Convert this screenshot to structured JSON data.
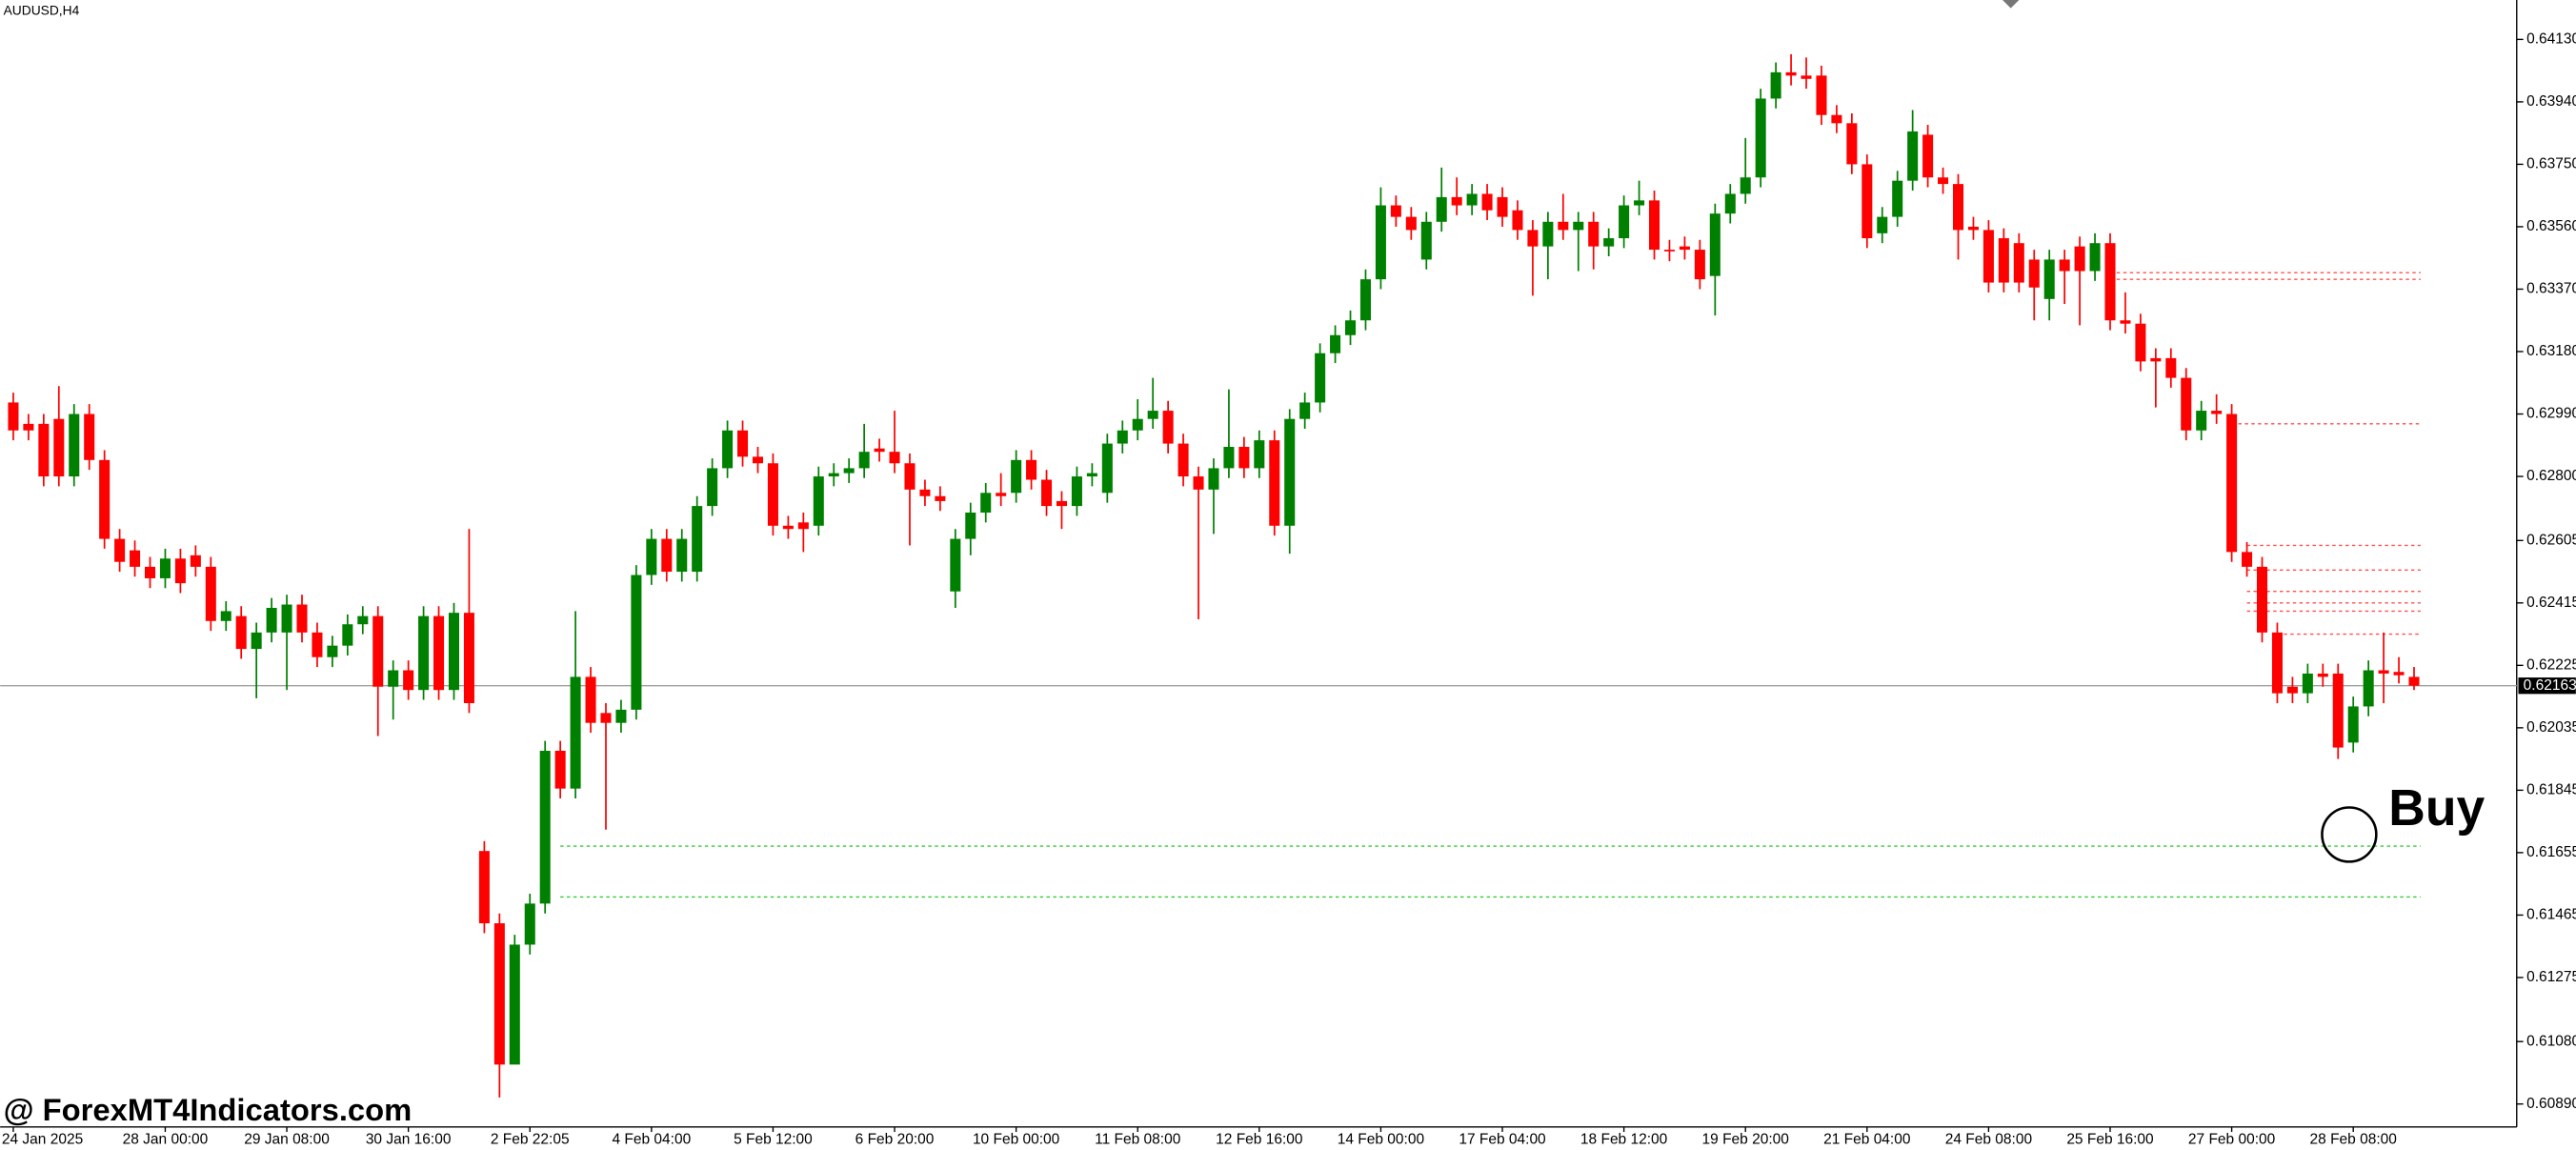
{
  "chart_data": {
    "type": "candlestick",
    "symbol": "AUDUSD,H4",
    "categories": [
      "24 Jan 2025",
      null,
      null,
      null,
      null,
      null,
      null,
      null,
      null,
      null,
      "28 Jan 00:00",
      null,
      null,
      null,
      null,
      null,
      null,
      null,
      "29 Jan 08:00",
      null,
      null,
      null,
      null,
      null,
      null,
      null,
      "30 Jan 16:00",
      null,
      null,
      null,
      null,
      null,
      null,
      null,
      "2 Feb 22:05",
      null,
      null,
      null,
      null,
      null,
      null,
      null,
      "4 Feb 04:00",
      null,
      null,
      null,
      null,
      null,
      null,
      null,
      "5 Feb 12:00",
      null,
      null,
      null,
      null,
      null,
      null,
      null,
      "6 Feb 20:00",
      null,
      null,
      null,
      null,
      null,
      null,
      null,
      "10 Feb 00:00",
      null,
      null,
      null,
      null,
      null,
      null,
      null,
      "11 Feb 08:00",
      null,
      null,
      null,
      null,
      null,
      null,
      null,
      "12 Feb 16:00",
      null,
      null,
      null,
      null,
      null,
      null,
      null,
      "14 Feb 00:00",
      null,
      null,
      null,
      null,
      null,
      null,
      null,
      "17 Feb 04:00",
      null,
      null,
      null,
      null,
      null,
      null,
      null,
      "18 Feb 12:00",
      null,
      null,
      null,
      null,
      null,
      null,
      null,
      "19 Feb 20:00",
      null,
      null,
      null,
      null,
      null,
      null,
      null,
      "21 Feb 04:00",
      null,
      null,
      null,
      null,
      null,
      null,
      null,
      "24 Feb 08:00",
      null,
      null,
      null,
      null,
      null,
      null,
      null,
      "25 Feb 16:00",
      null,
      null,
      null,
      null,
      null,
      null,
      null,
      "27 Feb 00:00",
      null,
      null,
      null,
      null,
      null,
      null,
      null,
      "28 Feb 08:00",
      null,
      null,
      null,
      null
    ],
    "open": [
      0.63025,
      0.6296,
      0.6296,
      0.62975,
      0.628,
      0.6299,
      0.6285,
      0.6261,
      0.62575,
      0.62525,
      0.6249,
      0.6255,
      0.6256,
      0.62525,
      0.6236,
      0.62375,
      0.62275,
      0.62325,
      0.62325,
      0.6241,
      0.62325,
      0.6225,
      0.62285,
      0.6235,
      0.62375,
      0.6216,
      0.6221,
      0.6215,
      0.62375,
      0.6215,
      0.62385,
      0.6166,
      0.6144,
      0.6101,
      0.61375,
      0.615,
      0.61965,
      0.6185,
      0.6219,
      0.6208,
      0.6205,
      0.6209,
      0.625,
      0.6261,
      0.6251,
      0.6251,
      0.6271,
      0.62825,
      0.6294,
      0.6286,
      0.6284,
      0.6265,
      0.6266,
      0.6265,
      0.628,
      0.6281,
      0.62825,
      0.62885,
      0.62875,
      0.6284,
      0.6276,
      0.6274,
      0.6245,
      0.6261,
      0.6269,
      0.6275,
      0.6275,
      0.6285,
      0.6279,
      0.62725,
      0.6271,
      0.628,
      0.6275,
      0.629,
      0.6294,
      0.62975,
      0.63,
      0.629,
      0.628,
      0.6276,
      0.62825,
      0.6289,
      0.62825,
      0.6291,
      0.6265,
      0.62975,
      0.63025,
      0.63175,
      0.6323,
      0.63275,
      0.634,
      0.63625,
      0.6359,
      0.6346,
      0.63575,
      0.6365,
      0.63625,
      0.6366,
      0.6365,
      0.6361,
      0.6355,
      0.635,
      0.63575,
      0.6355,
      0.63575,
      0.635,
      0.63525,
      0.63625,
      0.6364,
      0.6349,
      0.635,
      0.6349,
      0.6341,
      0.636,
      0.6366,
      0.6371,
      0.6395,
      0.6403,
      0.6402,
      0.6402,
      0.639,
      0.63875,
      0.6375,
      0.6354,
      0.6359,
      0.637,
      0.6384,
      0.6371,
      0.6369,
      0.6356,
      0.6355,
      0.63525,
      0.6351,
      0.6346,
      0.6334,
      0.6346,
      0.635,
      0.63425,
      0.6351,
      0.63275,
      0.63265,
      0.6316,
      0.6316,
      0.631,
      0.6294,
      0.63,
      0.6299,
      0.6257,
      0.62525,
      0.62325,
      0.6216,
      0.6214,
      0.622,
      0.622,
      0.6199,
      0.621,
      0.6221,
      0.62205,
      0.6219
    ],
    "high": [
      0.63055,
      0.6299,
      0.6299,
      0.63075,
      0.6302,
      0.6302,
      0.6288,
      0.6264,
      0.62605,
      0.62555,
      0.6258,
      0.6258,
      0.6259,
      0.62555,
      0.6242,
      0.62405,
      0.62355,
      0.6243,
      0.6244,
      0.6244,
      0.62355,
      0.62315,
      0.6238,
      0.62405,
      0.62405,
      0.6224,
      0.6224,
      0.62405,
      0.62405,
      0.62415,
      0.6264,
      0.6169,
      0.6147,
      0.61405,
      0.6153,
      0.61995,
      0.61995,
      0.6239,
      0.6222,
      0.6211,
      0.6212,
      0.6253,
      0.6264,
      0.6264,
      0.6264,
      0.6274,
      0.62855,
      0.6297,
      0.6297,
      0.6289,
      0.6287,
      0.6268,
      0.6269,
      0.6283,
      0.6284,
      0.62855,
      0.6296,
      0.62915,
      0.63,
      0.6287,
      0.6279,
      0.6277,
      0.6264,
      0.6272,
      0.6278,
      0.6281,
      0.6288,
      0.6288,
      0.6282,
      0.62755,
      0.6283,
      0.6284,
      0.6293,
      0.6297,
      0.63035,
      0.631,
      0.6303,
      0.6293,
      0.6283,
      0.62855,
      0.63065,
      0.6292,
      0.6294,
      0.6294,
      0.63005,
      0.63055,
      0.63205,
      0.6326,
      0.63305,
      0.6343,
      0.6368,
      0.63655,
      0.6362,
      0.63605,
      0.6374,
      0.6371,
      0.6369,
      0.6369,
      0.6368,
      0.6364,
      0.6358,
      0.63605,
      0.6366,
      0.63605,
      0.63605,
      0.63555,
      0.63655,
      0.637,
      0.6367,
      0.6352,
      0.6353,
      0.6352,
      0.6363,
      0.6369,
      0.6383,
      0.6398,
      0.6406,
      0.64085,
      0.64075,
      0.6405,
      0.6393,
      0.63905,
      0.6378,
      0.6362,
      0.6373,
      0.63915,
      0.6387,
      0.6374,
      0.6372,
      0.6359,
      0.6358,
      0.63555,
      0.6354,
      0.6349,
      0.6349,
      0.6349,
      0.6353,
      0.6354,
      0.6354,
      0.6336,
      0.63295,
      0.6319,
      0.6319,
      0.6313,
      0.6303,
      0.6305,
      0.6302,
      0.626,
      0.62555,
      0.62355,
      0.6219,
      0.6223,
      0.6223,
      0.6223,
      0.6213,
      0.6224,
      0.62325,
      0.6225,
      0.6222
    ],
    "low": [
      0.6291,
      0.6291,
      0.6277,
      0.6277,
      0.6277,
      0.6282,
      0.6258,
      0.6251,
      0.62495,
      0.6246,
      0.6246,
      0.62445,
      0.62495,
      0.6233,
      0.6233,
      0.62245,
      0.62125,
      0.62295,
      0.6215,
      0.62295,
      0.6222,
      0.6222,
      0.62255,
      0.6232,
      0.6201,
      0.6206,
      0.6212,
      0.6212,
      0.6212,
      0.6212,
      0.6208,
      0.6141,
      0.6091,
      0.6102,
      0.61345,
      0.6147,
      0.6182,
      0.6182,
      0.6202,
      0.61725,
      0.6202,
      0.6206,
      0.6247,
      0.6248,
      0.6248,
      0.6248,
      0.6268,
      0.62795,
      0.6283,
      0.6281,
      0.6262,
      0.6261,
      0.6257,
      0.6262,
      0.6277,
      0.6278,
      0.62795,
      0.62845,
      0.6281,
      0.6259,
      0.6271,
      0.62695,
      0.624,
      0.6256,
      0.6266,
      0.6271,
      0.6272,
      0.6276,
      0.6268,
      0.6264,
      0.6268,
      0.6277,
      0.6272,
      0.6287,
      0.6291,
      0.62945,
      0.6287,
      0.6277,
      0.62365,
      0.62625,
      0.62795,
      0.62795,
      0.62795,
      0.6262,
      0.62565,
      0.62945,
      0.62995,
      0.63145,
      0.632,
      0.63245,
      0.6337,
      0.6356,
      0.6352,
      0.6343,
      0.63545,
      0.63595,
      0.63595,
      0.6358,
      0.6356,
      0.6352,
      0.6335,
      0.634,
      0.6352,
      0.63425,
      0.6343,
      0.6347,
      0.63495,
      0.63595,
      0.6346,
      0.63455,
      0.6346,
      0.6337,
      0.6329,
      0.6357,
      0.6363,
      0.6368,
      0.6392,
      0.6399,
      0.6398,
      0.6387,
      0.63845,
      0.6372,
      0.63495,
      0.6351,
      0.6356,
      0.6367,
      0.6368,
      0.6366,
      0.6346,
      0.6352,
      0.6336,
      0.6336,
      0.6336,
      0.63275,
      0.63275,
      0.63325,
      0.6326,
      0.63395,
      0.63245,
      0.63235,
      0.6312,
      0.6301,
      0.6307,
      0.6291,
      0.6291,
      0.6296,
      0.6254,
      0.62495,
      0.62295,
      0.6211,
      0.6211,
      0.6211,
      0.6216,
      0.6194,
      0.6196,
      0.6207,
      0.6211,
      0.6217,
      0.6215
    ],
    "close": [
      0.6294,
      0.6294,
      0.628,
      0.628,
      0.6299,
      0.6285,
      0.6261,
      0.6254,
      0.62525,
      0.6249,
      0.6255,
      0.62475,
      0.62525,
      0.6236,
      0.6239,
      0.62275,
      0.62325,
      0.624,
      0.6241,
      0.62325,
      0.6225,
      0.62285,
      0.6235,
      0.62375,
      0.6216,
      0.6221,
      0.6215,
      0.62375,
      0.6215,
      0.62385,
      0.6211,
      0.6144,
      0.6101,
      0.61375,
      0.615,
      0.61965,
      0.6185,
      0.6219,
      0.6205,
      0.6205,
      0.6209,
      0.625,
      0.6261,
      0.6251,
      0.6261,
      0.6271,
      0.62825,
      0.6294,
      0.6286,
      0.6284,
      0.6265,
      0.6264,
      0.6264,
      0.628,
      0.6281,
      0.62825,
      0.62875,
      0.62875,
      0.6284,
      0.6276,
      0.6274,
      0.62725,
      0.6261,
      0.6269,
      0.6275,
      0.6274,
      0.6285,
      0.6279,
      0.6271,
      0.6271,
      0.628,
      0.6281,
      0.629,
      0.6294,
      0.62975,
      0.63,
      0.629,
      0.628,
      0.6276,
      0.62825,
      0.6289,
      0.62825,
      0.6291,
      0.6265,
      0.62975,
      0.63025,
      0.63175,
      0.6323,
      0.63275,
      0.634,
      0.63625,
      0.6359,
      0.6355,
      0.63575,
      0.6365,
      0.63625,
      0.6366,
      0.6361,
      0.6359,
      0.6355,
      0.635,
      0.63575,
      0.6355,
      0.63575,
      0.635,
      0.63525,
      0.63625,
      0.6364,
      0.6349,
      0.63485,
      0.6349,
      0.634,
      0.636,
      0.6366,
      0.6371,
      0.6395,
      0.6403,
      0.6402,
      0.6401,
      0.639,
      0.63875,
      0.6375,
      0.63525,
      0.6359,
      0.637,
      0.6385,
      0.6371,
      0.6369,
      0.6355,
      0.6355,
      0.6339,
      0.6339,
      0.6339,
      0.63375,
      0.6346,
      0.63425,
      0.63425,
      0.6351,
      0.63275,
      0.63265,
      0.6315,
      0.6315,
      0.631,
      0.6294,
      0.63,
      0.6299,
      0.6257,
      0.62525,
      0.62325,
      0.6214,
      0.6214,
      0.622,
      0.6219,
      0.61975,
      0.621,
      0.6221,
      0.622,
      0.62195,
      0.62163
    ],
    "up_color": "#008000",
    "down_color": "#ff0000",
    "ylim": [
      0.6082,
      0.6425
    ],
    "yticks": [
      {
        "value": 0.6413,
        "label": "0.64130"
      },
      {
        "value": 0.6394,
        "label": "0.63940"
      },
      {
        "value": 0.6375,
        "label": "0.63750"
      },
      {
        "value": 0.6356,
        "label": "0.63560"
      },
      {
        "value": 0.6337,
        "label": "0.63370"
      },
      {
        "value": 0.6318,
        "label": "0.63180"
      },
      {
        "value": 0.6299,
        "label": "0.62990"
      },
      {
        "value": 0.628,
        "label": "0.62800"
      },
      0.62605,
      0.62415,
      0.62225,
      0.62035,
      0.61845,
      0.61655,
      0.61465,
      0.61275,
      {
        "value": 0.6108,
        "label": "0.61080"
      },
      {
        "value": 0.6089,
        "label": "0.60890"
      }
    ],
    "current_price": 0.62163,
    "levels": [
      {
        "value": 0.61675,
        "start": 36,
        "color": "#33cc33"
      },
      {
        "value": 0.6152,
        "start": 36,
        "color": "#33cc33"
      },
      {
        "value": 0.6342,
        "start": 138,
        "color": "#ff5050"
      },
      {
        "value": 0.634,
        "start": 138,
        "color": "#ff5050"
      },
      {
        "value": 0.6296,
        "start": 146,
        "color": "#ff5050"
      },
      {
        "value": 0.6259,
        "start": 147,
        "color": "#ff5050"
      },
      {
        "value": 0.62515,
        "start": 147,
        "color": "#ff5050"
      },
      {
        "value": 0.6245,
        "start": 147,
        "color": "#ff5050"
      },
      {
        "value": 0.62415,
        "start": 147,
        "color": "#ff5050"
      },
      {
        "value": 0.6239,
        "start": 147,
        "color": "#ff5050"
      },
      {
        "value": 0.6232,
        "start": 149,
        "color": "#ff5050"
      }
    ],
    "signal": "Buy"
  },
  "watermark": "@ ForexMT4Indicators.com"
}
